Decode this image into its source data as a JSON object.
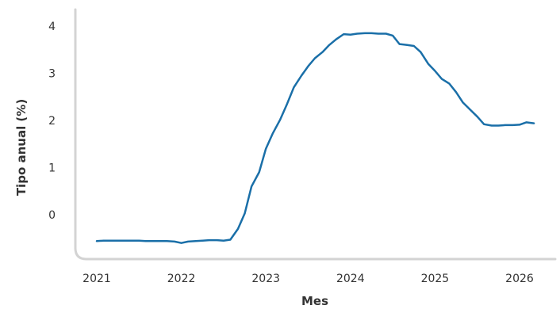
{
  "chart_data": {
    "type": "line",
    "title": "",
    "xlabel": "Mes",
    "ylabel": "Tipo anual (%)",
    "xlim": [
      2021.0,
      2026.25
    ],
    "ylim": [
      -0.8,
      4.3
    ],
    "x_ticks": [
      {
        "value": 2021,
        "label": "2021"
      },
      {
        "value": 2022,
        "label": "2022"
      },
      {
        "value": 2023,
        "label": "2023"
      },
      {
        "value": 2024,
        "label": "2024"
      },
      {
        "value": 2025,
        "label": "2025"
      },
      {
        "value": 2026,
        "label": "2026"
      }
    ],
    "y_ticks": [
      {
        "value": 0,
        "label": "0"
      },
      {
        "value": 1,
        "label": "1"
      },
      {
        "value": 2,
        "label": "2"
      },
      {
        "value": 3,
        "label": "3"
      },
      {
        "value": 4,
        "label": "4"
      }
    ],
    "grid": false,
    "legend": "none",
    "colors": {
      "line": "#1a6fa8",
      "axis": "#d3d3d3",
      "text": "#333333"
    },
    "series": [
      {
        "color": "#1a6fa8",
        "x": [
          2021.0,
          2021.08,
          2021.17,
          2021.25,
          2021.33,
          2021.42,
          2021.5,
          2021.58,
          2021.67,
          2021.75,
          2021.83,
          2021.92,
          2022.0,
          2022.08,
          2022.17,
          2022.25,
          2022.33,
          2022.42,
          2022.5,
          2022.58,
          2022.67,
          2022.75,
          2022.83,
          2022.92,
          2023.0,
          2023.08,
          2023.17,
          2023.25,
          2023.33,
          2023.42,
          2023.5,
          2023.58,
          2023.67,
          2023.75,
          2023.83,
          2023.92,
          2024.0,
          2024.08,
          2024.17,
          2024.25,
          2024.33,
          2024.42,
          2024.5,
          2024.58,
          2024.67,
          2024.75,
          2024.83,
          2024.92,
          2025.0,
          2025.08,
          2025.17,
          2025.25,
          2025.33,
          2025.42,
          2025.5,
          2025.58,
          2025.67,
          2025.75,
          2025.83,
          2025.92,
          2026.0,
          2026.08,
          2026.17
        ],
        "y": [
          -0.56,
          -0.55,
          -0.55,
          -0.55,
          -0.55,
          -0.55,
          -0.55,
          -0.56,
          -0.56,
          -0.56,
          -0.56,
          -0.57,
          -0.6,
          -0.57,
          -0.56,
          -0.55,
          -0.54,
          -0.54,
          -0.55,
          -0.53,
          -0.3,
          0.03,
          0.6,
          0.9,
          1.4,
          1.72,
          2.02,
          2.35,
          2.7,
          2.95,
          3.15,
          3.32,
          3.45,
          3.6,
          3.72,
          3.83,
          3.82,
          3.84,
          3.85,
          3.85,
          3.84,
          3.84,
          3.8,
          3.62,
          3.6,
          3.58,
          3.45,
          3.2,
          3.05,
          2.88,
          2.78,
          2.6,
          2.38,
          2.22,
          2.08,
          1.92,
          1.89,
          1.89,
          1.9,
          1.9,
          1.91,
          1.96,
          1.94
        ]
      }
    ]
  }
}
